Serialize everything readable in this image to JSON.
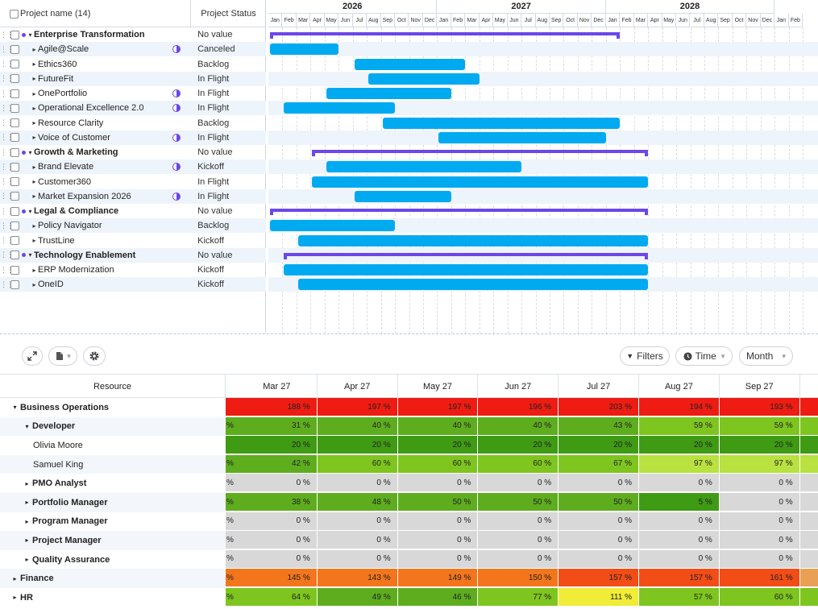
{
  "gantt": {
    "header": {
      "name_label": "Project name (14)",
      "status_label": "Project Status"
    },
    "years": [
      "2026",
      "2027",
      "2028"
    ],
    "months": [
      "Jan",
      "Feb",
      "Mar",
      "Apr",
      "May",
      "Jun",
      "Jul",
      "Aug",
      "Sep",
      "Oct",
      "Nov",
      "Dec",
      "Jan",
      "Feb",
      "Mar",
      "Apr",
      "May",
      "Jun",
      "Jul",
      "Aug",
      "Sep",
      "Oct",
      "Nov",
      "Dec",
      "Jan",
      "Feb",
      "Mar",
      "Apr",
      "May",
      "Jun",
      "Jul",
      "Aug",
      "Sep",
      "Oct",
      "Nov",
      "Dec",
      "Jan",
      "Feb"
    ],
    "rows": [
      {
        "name": "Enterprise Transformation",
        "status": "No value",
        "group": true,
        "start": "2026-01",
        "end": "2028-01"
      },
      {
        "name": "Agile@Scale",
        "status": "Canceled",
        "group": false,
        "icon": "half-circle-icon",
        "start": "2026-01",
        "end": "2026-05"
      },
      {
        "name": "Ethics360",
        "status": "Backlog",
        "group": false,
        "start": "2026-07",
        "end": "2027-02"
      },
      {
        "name": "FutureFit",
        "status": "In Flight",
        "group": false,
        "start": "2026-08",
        "end": "2027-03"
      },
      {
        "name": "OnePortfolio",
        "status": "In Flight",
        "group": false,
        "icon": "half-circle-icon",
        "start": "2026-05",
        "end": "2027-01"
      },
      {
        "name": "Operational Excellence 2.0",
        "status": "In Flight",
        "group": false,
        "icon": "half-circle-icon",
        "start": "2026-02",
        "end": "2026-09"
      },
      {
        "name": "Resource Clarity",
        "status": "Backlog",
        "group": false,
        "start": "2026-09",
        "end": "2028-01"
      },
      {
        "name": "Voice of Customer",
        "status": "In Flight",
        "group": false,
        "icon": "half-circle-icon",
        "start": "2027-01",
        "end": "2027-12"
      },
      {
        "name": "Growth & Marketing",
        "status": "No value",
        "group": true,
        "start": "2026-04",
        "end": "2028-03"
      },
      {
        "name": "Brand Elevate",
        "status": "Kickoff",
        "group": false,
        "icon": "half-circle-icon",
        "start": "2026-05",
        "end": "2027-06"
      },
      {
        "name": "Customer360",
        "status": "In Flight",
        "group": false,
        "start": "2026-04",
        "end": "2028-03"
      },
      {
        "name": "Market Expansion 2026",
        "status": "In Flight",
        "group": false,
        "icon": "half-circle-icon",
        "start": "2026-07",
        "end": "2027-01"
      },
      {
        "name": "Legal & Compliance",
        "status": "No value",
        "group": true,
        "start": "2026-01",
        "end": "2028-03"
      },
      {
        "name": "Policy Navigator",
        "status": "Backlog",
        "group": false,
        "start": "2026-01",
        "end": "2026-09"
      },
      {
        "name": "TrustLine",
        "status": "Kickoff",
        "group": false,
        "start": "2026-03",
        "end": "2028-03"
      },
      {
        "name": "Technology Enablement",
        "status": "No value",
        "group": true,
        "start": "2026-02",
        "end": "2028-03"
      },
      {
        "name": "ERP Modernization",
        "status": "Kickoff",
        "group": false,
        "start": "2026-02",
        "end": "2028-03"
      },
      {
        "name": "OneID",
        "status": "Kickoff",
        "group": false,
        "start": "2026-03",
        "end": "2028-03"
      }
    ]
  },
  "toolbar": {
    "expand_icon": "expand-icon",
    "export_icon": "export-icon",
    "settings_icon": "gear-icon",
    "filters_label": "Filters",
    "time_label": "Time",
    "month_label": "Month"
  },
  "resource_table": {
    "resource_header": "Resource",
    "months": [
      "Mar 27",
      "Apr 27",
      "May 27",
      "Jun 27",
      "Jul 27",
      "Aug 27",
      "Sep 27"
    ],
    "rows": [
      {
        "name": "Business Operations",
        "level": 0,
        "expanded": true,
        "bold": true,
        "stub": "",
        "values": [
          "188 %",
          "197 %",
          "197 %",
          "196 %",
          "203 %",
          "194 %",
          "193 %"
        ]
      },
      {
        "name": "Developer",
        "level": 1,
        "expanded": true,
        "bold": true,
        "stub": "%",
        "values": [
          "31 %",
          "40 %",
          "40 %",
          "40 %",
          "43 %",
          "59 %",
          "59 %"
        ]
      },
      {
        "name": "Olivia Moore",
        "level": 2,
        "bold": false,
        "stub": "",
        "values": [
          "20 %",
          "20 %",
          "20 %",
          "20 %",
          "20 %",
          "20 %",
          "20 %"
        ]
      },
      {
        "name": "Samuel King",
        "level": 2,
        "bold": false,
        "stub": "%",
        "values": [
          "42 %",
          "60 %",
          "60 %",
          "60 %",
          "67 %",
          "97 %",
          "97 %"
        ]
      },
      {
        "name": "PMO Analyst",
        "level": 1,
        "expanded": false,
        "bold": true,
        "stub": "%",
        "values": [
          "0 %",
          "0 %",
          "0 %",
          "0 %",
          "0 %",
          "0 %",
          "0 %"
        ]
      },
      {
        "name": "Portfolio Manager",
        "level": 1,
        "expanded": false,
        "bold": true,
        "stub": "%",
        "values": [
          "38 %",
          "48 %",
          "50 %",
          "50 %",
          "50 %",
          "5 %",
          "0 %"
        ]
      },
      {
        "name": "Program Manager",
        "level": 1,
        "expanded": false,
        "bold": true,
        "stub": "%",
        "values": [
          "0 %",
          "0 %",
          "0 %",
          "0 %",
          "0 %",
          "0 %",
          "0 %"
        ]
      },
      {
        "name": "Project Manager",
        "level": 1,
        "expanded": false,
        "bold": true,
        "stub": "%",
        "values": [
          "0 %",
          "0 %",
          "0 %",
          "0 %",
          "0 %",
          "0 %",
          "0 %"
        ]
      },
      {
        "name": "Quality Assurance",
        "level": 1,
        "expanded": false,
        "bold": true,
        "stub": "%",
        "values": [
          "0 %",
          "0 %",
          "0 %",
          "0 %",
          "0 %",
          "0 %",
          "0 %"
        ]
      },
      {
        "name": "Finance",
        "level": 0,
        "expanded": false,
        "bold": true,
        "stub": "%",
        "values": [
          "145 %",
          "143 %",
          "149 %",
          "150 %",
          "157 %",
          "157 %",
          "161 %"
        ]
      },
      {
        "name": "HR",
        "level": 0,
        "expanded": false,
        "bold": true,
        "stub": "%",
        "values": [
          "64 %",
          "49 %",
          "46 %",
          "77 %",
          "111 %",
          "57 %",
          "60 %"
        ]
      }
    ]
  },
  "colors": {
    "bar": "#00aaf0",
    "group_bar": "#6b48e8",
    "over": "#ee1c12",
    "high": "#f3761c",
    "yellow": "#f0ec38",
    "lime": "#b9e13f",
    "green_light": "#7ec51f",
    "green": "#5ead1e",
    "green_dark": "#3f9a14",
    "empty": "#d8d8d8"
  }
}
